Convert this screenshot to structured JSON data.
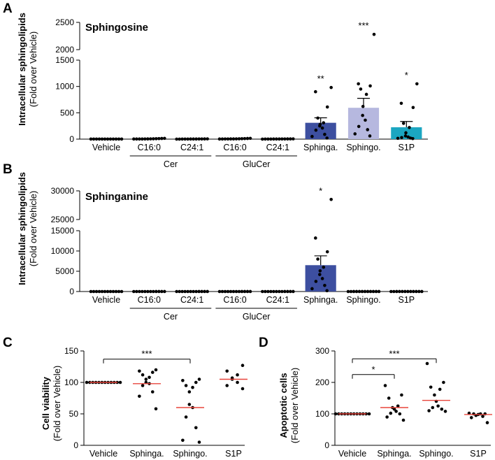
{
  "figure": {
    "panels": [
      "A",
      "B",
      "C",
      "D"
    ],
    "ylabel": "Intracellular sphingolipids",
    "ylabel_sub": "(Fold over Vehicle)"
  },
  "colors": {
    "sphinga": "#3d4fa0",
    "sphingo": "#b6b8df",
    "s1p": "#1ba6c1",
    "median": "#e8453c",
    "point": "#000000"
  },
  "chart_data": [
    {
      "id": "A",
      "type": "bar",
      "title": "Sphingosine",
      "ylabel": "Intracellular sphingolipids",
      "ylabel_sub": "(Fold over Vehicle)",
      "axis_break": true,
      "ylim_lower": [
        0,
        1500
      ],
      "ylim_upper": [
        2000,
        2500
      ],
      "yticks": [
        0,
        500,
        1000,
        1500,
        2000,
        2500
      ],
      "categories": [
        "Vehicle",
        "C16:0",
        "C24:1",
        "C16:0",
        "C24:1",
        "Sphinga.",
        "Sphingo.",
        "S1P"
      ],
      "groups": [
        {
          "label": "Cer",
          "from": 1,
          "to": 2
        },
        {
          "label": "GluCer",
          "from": 3,
          "to": 4
        }
      ],
      "means": [
        1,
        5,
        2,
        6,
        3,
        310,
        595,
        225
      ],
      "sem": [
        0,
        0,
        0,
        0,
        0,
        95,
        180,
        110
      ],
      "bar_colors": [
        null,
        null,
        null,
        null,
        null,
        "#3d4fa0",
        "#b6b8df",
        "#1ba6c1"
      ],
      "points": [
        [
          1,
          1,
          1,
          1,
          1,
          1,
          1,
          1,
          1,
          1,
          1,
          1
        ],
        [
          2,
          2,
          2,
          2,
          3,
          4,
          5,
          6,
          8,
          10,
          12,
          15
        ],
        [
          0,
          0,
          1,
          1,
          1,
          2,
          2,
          2,
          3,
          3,
          4,
          5
        ],
        [
          2,
          2,
          3,
          3,
          4,
          4,
          5,
          6,
          8,
          10,
          12,
          15
        ],
        [
          0,
          1,
          1,
          1,
          2,
          2,
          2,
          3,
          3,
          4,
          4,
          5
        ],
        [
          20,
          50,
          90,
          170,
          210,
          250,
          280,
          310,
          400,
          610,
          900,
          980
        ],
        [
          60,
          100,
          180,
          240,
          360,
          450,
          620,
          850,
          950,
          1010,
          1050,
          2280
        ],
        [
          10,
          15,
          20,
          30,
          40,
          60,
          120,
          220,
          300,
          600,
          680,
          1050
        ]
      ],
      "significance": [
        "",
        "",
        "",
        "",
        "",
        "**",
        "***",
        "*"
      ]
    },
    {
      "id": "B",
      "type": "bar",
      "title": "Sphinganine",
      "ylabel": "Intracellular sphingolipids",
      "ylabel_sub": "(Fold over Vehicle)",
      "axis_break": true,
      "ylim_lower": [
        0,
        15000
      ],
      "ylim_upper": [
        25000,
        30000
      ],
      "yticks": [
        0,
        5000,
        10000,
        15000,
        25000,
        30000
      ],
      "categories": [
        "Vehicle",
        "C16:0",
        "C24:1",
        "C16:0",
        "C24:1",
        "Sphinga.",
        "Sphingo.",
        "S1P"
      ],
      "groups": [
        {
          "label": "Cer",
          "from": 1,
          "to": 2
        },
        {
          "label": "GluCer",
          "from": 3,
          "to": 4
        }
      ],
      "means": [
        1,
        2,
        2,
        2,
        2,
        6500,
        5,
        5
      ],
      "sem": [
        0,
        0,
        0,
        0,
        0,
        2300,
        0,
        0
      ],
      "bar_colors": [
        null,
        null,
        null,
        null,
        null,
        "#3d4fa0",
        null,
        null
      ],
      "points": [
        [
          1,
          1,
          1,
          1,
          1,
          1,
          1,
          1,
          1,
          1,
          1,
          1
        ],
        [
          1,
          1,
          1,
          1,
          2,
          2,
          2,
          2,
          3,
          3,
          3,
          3
        ],
        [
          1,
          1,
          1,
          1,
          2,
          2,
          2,
          2,
          3,
          3,
          3,
          3
        ],
        [
          1,
          1,
          1,
          1,
          2,
          2,
          2,
          2,
          3,
          3,
          3,
          3
        ],
        [
          1,
          1,
          1,
          1,
          2,
          2,
          2,
          2,
          3,
          3,
          3,
          3
        ],
        [
          200,
          700,
          1500,
          2500,
          3200,
          4200,
          5100,
          6000,
          8000,
          9800,
          13200,
          28500
        ],
        [
          2,
          2,
          3,
          3,
          4,
          5,
          5,
          6,
          6,
          7,
          8,
          9
        ],
        [
          2,
          2,
          3,
          3,
          4,
          5,
          5,
          6,
          6,
          7,
          8,
          9
        ]
      ],
      "significance": [
        "",
        "",
        "",
        "",
        "",
        "*",
        "",
        ""
      ]
    },
    {
      "id": "C",
      "type": "scatter",
      "ylabel": "Cell viability",
      "ylabel_sub": "(Fold over Vehicle)",
      "ylim": [
        0,
        150
      ],
      "yticks": [
        0,
        50,
        100,
        150
      ],
      "categories": [
        "Vehicle",
        "Sphinga.",
        "Sphingo.",
        "S1P"
      ],
      "points": [
        [
          100,
          100,
          100,
          100,
          100,
          100,
          100,
          100,
          100,
          100,
          100,
          100
        ],
        [
          58,
          78,
          85,
          95,
          98,
          100,
          105,
          108,
          112,
          116,
          118,
          120
        ],
        [
          5,
          8,
          28,
          45,
          60,
          65,
          85,
          92,
          95,
          100,
          103,
          105
        ],
        [
          90,
          95,
          100,
          105,
          107,
          112,
          118,
          127
        ]
      ],
      "medians": [
        100,
        98,
        60,
        105
      ],
      "brackets": [
        {
          "from": 0,
          "to": 2,
          "label": "***",
          "y": 137
        }
      ]
    },
    {
      "id": "D",
      "type": "scatter",
      "ylabel": "Apoptotic cells",
      "ylabel_sub": "(Fold over Vehicle)",
      "ylim": [
        0,
        300
      ],
      "yticks": [
        0,
        100,
        200,
        300
      ],
      "categories": [
        "Vehicle",
        "Sphinga.",
        "Sphingo.",
        "S1P"
      ],
      "points": [
        [
          100,
          100,
          100,
          100,
          100,
          100,
          100,
          100,
          100,
          100,
          100,
          100
        ],
        [
          80,
          90,
          100,
          102,
          108,
          115,
          120,
          125,
          150,
          160,
          190
        ],
        [
          108,
          110,
          115,
          120,
          125,
          140,
          160,
          178,
          185,
          200,
          260
        ],
        [
          72,
          88,
          92,
          95,
          98,
          100,
          100,
          100,
          102
        ]
      ],
      "medians": [
        100,
        120,
        143,
        98
      ],
      "brackets": [
        {
          "from": 0,
          "to": 1,
          "label": "*",
          "y": 225
        },
        {
          "from": 0,
          "to": 2,
          "label": "***",
          "y": 275
        }
      ]
    }
  ]
}
